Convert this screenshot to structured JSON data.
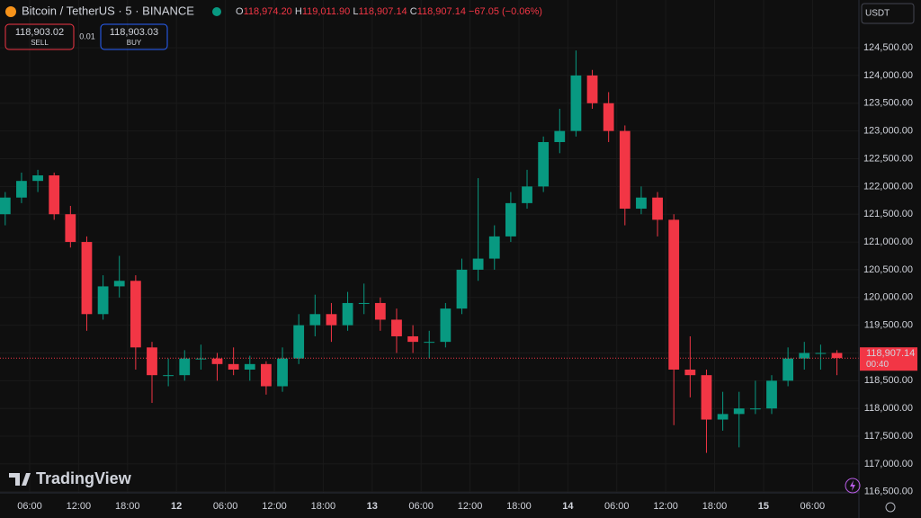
{
  "header": {
    "symbol": "Bitcoin / TetherUS · 5 · BINANCE",
    "ohlc": [
      {
        "key": "O",
        "value": "118,974.20"
      },
      {
        "key": "H",
        "value": "119,011.90"
      },
      {
        "key": "L",
        "value": "118,907.14"
      },
      {
        "key": "C",
        "value": "118,907.14"
      }
    ],
    "change": "−67.05 (−0.06%)",
    "sell": {
      "price": "118,903.02",
      "label": "SELL"
    },
    "spread": "0.01",
    "buy": {
      "price": "118,903.03",
      "label": "BUY"
    },
    "currency": "USDT"
  },
  "branding": "TradingView",
  "chart_data": {
    "type": "candlestick",
    "up_color": "#089981",
    "down_color": "#f23645",
    "grid": true,
    "x": [
      3,
      5,
      7,
      9,
      11,
      13,
      15,
      17,
      19,
      21,
      23,
      25,
      27,
      29,
      31,
      33,
      35,
      37,
      39,
      41,
      43,
      45,
      47,
      49,
      51,
      53,
      55,
      57,
      59,
      61,
      63,
      65,
      67,
      69,
      71,
      73,
      75,
      77,
      79,
      81,
      83,
      85,
      87,
      89,
      91,
      93,
      95,
      97,
      99,
      101,
      103,
      105
    ],
    "open": [
      121500,
      121800,
      122100,
      122200,
      121500,
      121000,
      119700,
      120200,
      120300,
      119100,
      118600,
      118600,
      118900,
      118900,
      118800,
      118700,
      118800,
      118400,
      118900,
      119500,
      119700,
      119500,
      119900,
      119900,
      119600,
      119300,
      119200,
      119200,
      119800,
      120500,
      120700,
      121100,
      121700,
      122000,
      122800,
      123000,
      124000,
      123500,
      123000,
      121600,
      121800,
      121400,
      118700,
      118600,
      117800,
      117900,
      118000,
      118000,
      118500,
      118900,
      119000,
      119000
    ],
    "high": [
      121900,
      122250,
      122300,
      122250,
      121650,
      121100,
      120400,
      120750,
      120400,
      119200,
      118900,
      119050,
      119150,
      119000,
      119100,
      118950,
      118850,
      119100,
      119700,
      120050,
      119900,
      120100,
      120250,
      120000,
      119800,
      119500,
      119400,
      119900,
      120700,
      122150,
      121300,
      121900,
      122300,
      122900,
      123400,
      124450,
      124100,
      123700,
      123100,
      122000,
      121900,
      121500,
      119300,
      118700,
      118300,
      118300,
      118500,
      118600,
      119100,
      119200,
      119150,
      119050
    ],
    "low": [
      121300,
      121700,
      121900,
      121400,
      120900,
      119400,
      119600,
      120000,
      118700,
      118100,
      118400,
      118500,
      118700,
      118500,
      118600,
      118500,
      118250,
      118300,
      118800,
      119300,
      119200,
      119400,
      119700,
      119400,
      119000,
      119000,
      118900,
      119100,
      119700,
      120300,
      120500,
      121000,
      121600,
      121900,
      122600,
      122900,
      123400,
      122800,
      121300,
      121500,
      121100,
      117700,
      118200,
      117200,
      117600,
      117300,
      117900,
      117900,
      118400,
      118700,
      118700,
      118600
    ],
    "close": [
      121800,
      122100,
      122200,
      121500,
      121000,
      119700,
      120200,
      120300,
      119100,
      118600,
      118600,
      118900,
      118900,
      118800,
      118700,
      118800,
      118400,
      118900,
      119500,
      119700,
      119500,
      119900,
      119900,
      119600,
      119300,
      119200,
      119200,
      119800,
      120500,
      120700,
      121100,
      121700,
      122000,
      122800,
      123000,
      124000,
      123500,
      123000,
      121600,
      121800,
      121400,
      118700,
      118600,
      117800,
      117900,
      118000,
      118000,
      118500,
      118900,
      119000,
      119000,
      118907.14
    ],
    "xlim": [
      2.36,
      107.7
    ],
    "xticks": [
      {
        "value": 6,
        "label": "06:00"
      },
      {
        "value": 12,
        "label": "12:00"
      },
      {
        "value": 18,
        "label": "18:00"
      },
      {
        "value": 24,
        "label": "12"
      },
      {
        "value": 30,
        "label": "06:00"
      },
      {
        "value": 36,
        "label": "12:00"
      },
      {
        "value": 42,
        "label": "18:00"
      },
      {
        "value": 48,
        "label": "13"
      },
      {
        "value": 54,
        "label": "06:00"
      },
      {
        "value": 60,
        "label": "12:00"
      },
      {
        "value": 66,
        "label": "18:00"
      },
      {
        "value": 72,
        "label": "14"
      },
      {
        "value": 78,
        "label": "06:00"
      },
      {
        "value": 84,
        "label": "12:00"
      },
      {
        "value": 90,
        "label": "18:00"
      },
      {
        "value": 96,
        "label": "15"
      },
      {
        "value": 102,
        "label": "06:00"
      }
    ],
    "ylim": [
      116480,
      125360
    ],
    "yticks": [
      {
        "value": 116500,
        "label": "116,500.00"
      },
      {
        "value": 117000,
        "label": "117,000.00"
      },
      {
        "value": 117500,
        "label": "117,500.00"
      },
      {
        "value": 118000,
        "label": "118,000.00"
      },
      {
        "value": 118500,
        "label": "118,500.00"
      },
      {
        "value": 119000,
        "label": "119,000.00"
      },
      {
        "value": 119500,
        "label": "119,500.00"
      },
      {
        "value": 120000,
        "label": "120,000.00"
      },
      {
        "value": 120500,
        "label": "120,500.00"
      },
      {
        "value": 121000,
        "label": "121,000.00"
      },
      {
        "value": 121500,
        "label": "121,500.00"
      },
      {
        "value": 122000,
        "label": "122,000.00"
      },
      {
        "value": 122500,
        "label": "122,500.00"
      },
      {
        "value": 123000,
        "label": "123,000.00"
      },
      {
        "value": 123500,
        "label": "123,500.00"
      },
      {
        "value": 124000,
        "label": "124,000.00"
      },
      {
        "value": 124500,
        "label": "124,500.00"
      }
    ],
    "price_line": {
      "value": 118907.14,
      "label": "118,907.14",
      "countdown": "00:40"
    }
  }
}
